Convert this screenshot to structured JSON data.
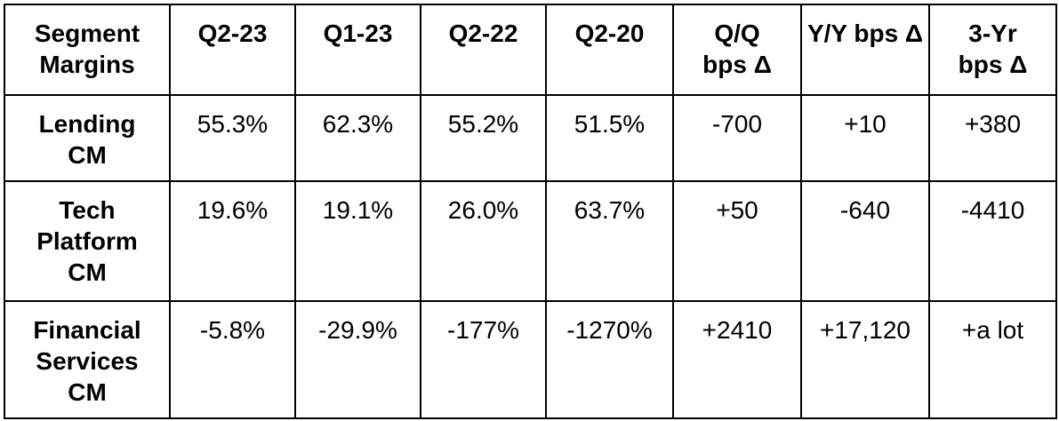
{
  "table": {
    "headers": [
      "Segment Margins",
      "Q2-23",
      "Q1-23",
      "Q2-22",
      "Q2-20",
      "Q/Q bps Δ",
      "Y/Y bps Δ",
      "3-Yr bps Δ"
    ],
    "rows": [
      {
        "segment": "Lending CM",
        "values": [
          "55.3%",
          "62.3%",
          "55.2%",
          "51.5%",
          "-700",
          "+10",
          "+380"
        ]
      },
      {
        "segment": "Tech Platform CM",
        "values": [
          "19.6%",
          "19.1%",
          "26.0%",
          "63.7%",
          "+50",
          "-640",
          "-4410"
        ]
      },
      {
        "segment": "Financial Services CM",
        "values": [
          "-5.8%",
          "-29.9%",
          "-177%",
          "-1270%",
          "+2410",
          "+17,120",
          "+a lot"
        ]
      }
    ]
  }
}
